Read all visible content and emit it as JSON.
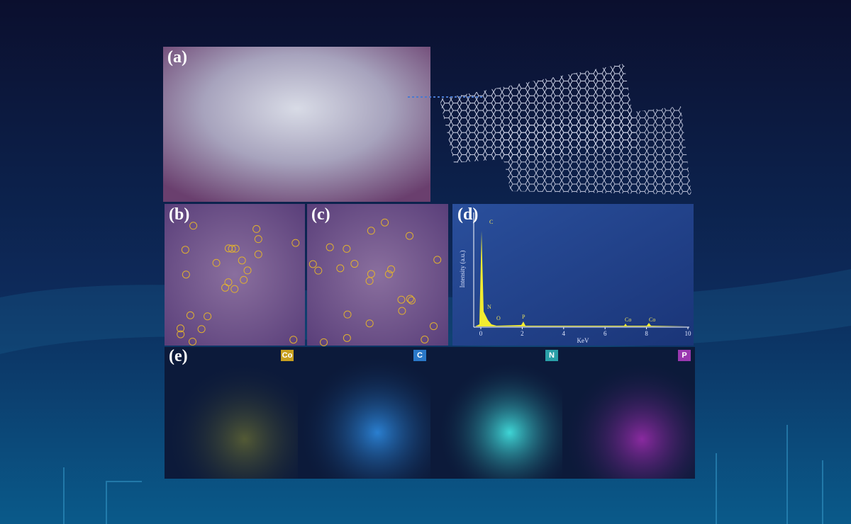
{
  "panels": {
    "a": "(a)",
    "b": "(b)",
    "c": "(c)",
    "d": "(d)",
    "e": "(e)"
  },
  "spectrum": {
    "y_label": "Intensity (a.u.)",
    "x_label": "KeV",
    "x_ticks": [
      "0",
      "2",
      "4",
      "6",
      "8",
      "10"
    ],
    "peaks": [
      "C",
      "N",
      "O",
      "P",
      "Co",
      "Co"
    ]
  },
  "maps": [
    "Co",
    "C",
    "N",
    "P"
  ]
}
